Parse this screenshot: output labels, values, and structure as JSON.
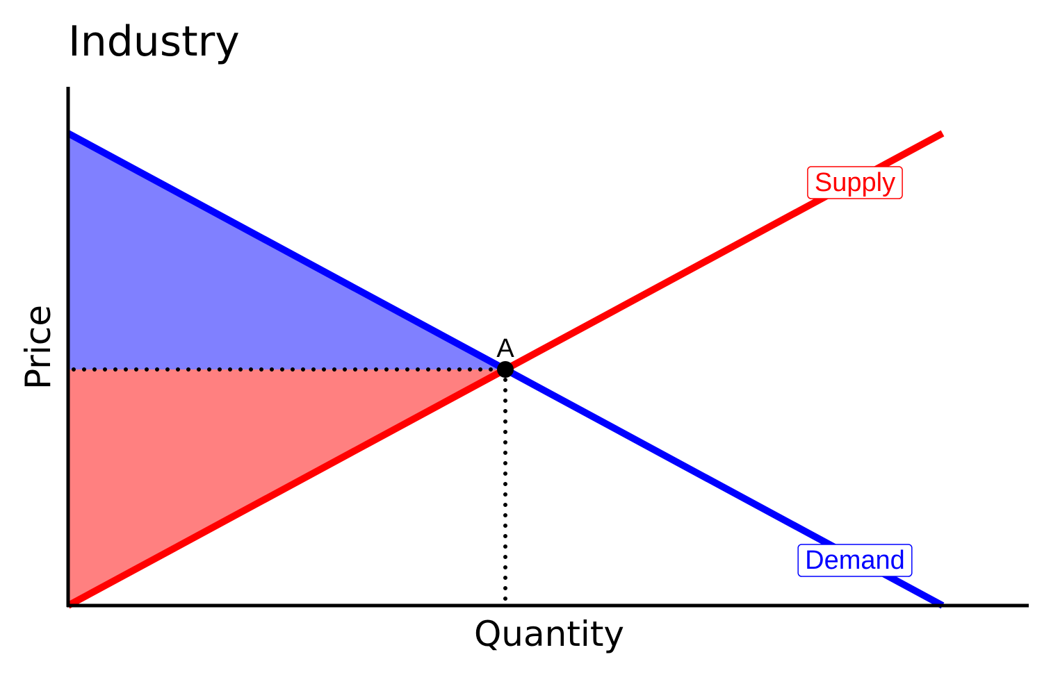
{
  "chart_data": {
    "type": "line",
    "title": "Industry",
    "xlabel": "Quantity",
    "ylabel": "Price",
    "xlim": [
      0,
      10
    ],
    "ylim": [
      0,
      10
    ],
    "grid": false,
    "series": [
      {
        "name": "Demand",
        "color": "#0000ff",
        "points": [
          [
            0,
            10
          ],
          [
            10,
            0
          ]
        ]
      },
      {
        "name": "Supply",
        "color": "#ff0000",
        "points": [
          [
            0,
            0
          ],
          [
            10,
            10
          ]
        ]
      }
    ],
    "equilibrium": {
      "label": "A",
      "x": 5,
      "y": 5
    },
    "shaded_areas": [
      {
        "region": "consumer surplus",
        "color": "#8080ff"
      },
      {
        "region": "producer surplus",
        "color": "#ff8080"
      }
    ]
  }
}
